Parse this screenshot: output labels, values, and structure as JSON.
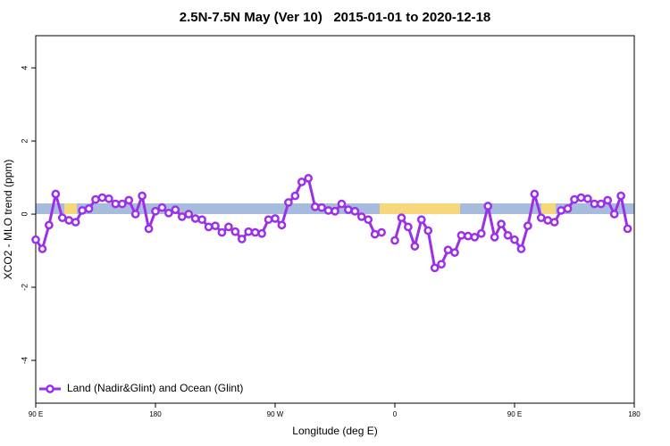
{
  "chart_data": {
    "type": "line",
    "title": "2.5N-7.5N May (Ver 10)   2015-01-01 to 2020-12-18",
    "x_label": "Longitude (deg E)",
    "y_label": "XCO2 - MLO trend (ppm)",
    "xlim": [
      90,
      540
    ],
    "xticks": [
      {
        "value": 90,
        "label": "90 E"
      },
      {
        "value": 180,
        "label": "180"
      },
      {
        "value": 270,
        "label": "90 W"
      },
      {
        "value": 360,
        "label": "0"
      },
      {
        "value": 450,
        "label": "90 E"
      },
      {
        "value": 540,
        "label": "180"
      }
    ],
    "ylim": [
      -5.17,
      4.88
    ],
    "yticks": [
      -4,
      -2,
      0,
      2,
      4
    ],
    "legend": "bottom-left",
    "x": [
      90,
      95,
      100,
      105,
      110,
      115,
      120,
      125,
      130,
      135,
      140,
      145,
      150,
      155,
      160,
      165,
      170,
      175,
      180,
      185,
      190,
      195,
      200,
      205,
      210,
      215,
      220,
      225,
      230,
      235,
      240,
      245,
      250,
      255,
      260,
      265,
      270,
      275,
      280,
      285,
      290,
      295,
      300,
      305,
      310,
      315,
      320,
      325,
      330,
      335,
      340,
      345,
      350,
      355,
      360,
      365,
      370,
      375,
      380,
      385,
      390,
      395,
      400,
      405,
      410,
      415,
      420,
      425,
      430,
      435,
      440,
      445,
      450,
      455,
      460,
      465,
      470,
      475,
      480,
      485,
      490,
      495,
      500,
      505,
      510,
      515,
      520,
      525,
      530,
      535
    ],
    "series": [
      {
        "name": "Land (Nadir&Glint) and Ocean (Glint)",
        "color": "#9b30e8",
        "values": [
          -0.7,
          -0.95,
          -0.3,
          0.55,
          -0.1,
          -0.17,
          -0.22,
          0.1,
          0.15,
          0.4,
          0.45,
          0.42,
          0.28,
          0.28,
          0.38,
          0,
          0.5,
          -0.4,
          0.08,
          0.18,
          0.03,
          0.12,
          -0.07,
          0,
          -0.12,
          -0.15,
          -0.35,
          -0.32,
          -0.5,
          -0.35,
          -0.48,
          -0.68,
          -0.48,
          -0.5,
          -0.53,
          -0.15,
          -0.12,
          -0.3,
          0.32,
          0.5,
          0.88,
          0.98,
          0.2,
          0.18,
          0.1,
          0.08,
          0.28,
          0.12,
          0.08,
          -0.07,
          -0.15,
          -0.55,
          -0.5,
          null,
          -0.72,
          -0.1,
          -0.35,
          -0.88,
          -0.15,
          -0.45,
          -1.47,
          -1.37,
          -0.98,
          -1.05,
          -0.58,
          -0.6,
          -0.63,
          -0.53,
          0.22,
          -0.63,
          -0.27,
          -0.58,
          -0.7,
          -0.95,
          -0.32,
          0.55,
          -0.1,
          -0.17,
          -0.22,
          0.1,
          0.15,
          0.4,
          0.45,
          0.42,
          0.28,
          0.28,
          0.38,
          0,
          0.5,
          -0.4
        ]
      }
    ]
  }
}
